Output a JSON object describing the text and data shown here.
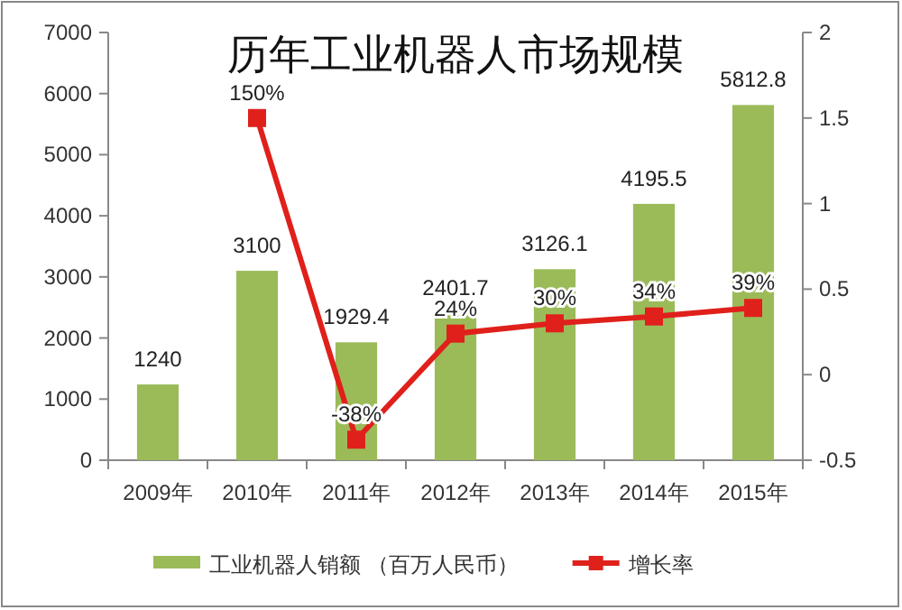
{
  "chart_data": {
    "type": "bar",
    "title": "历年工业机器人市场规模",
    "categories": [
      "2009年",
      "2010年",
      "2011年",
      "2012年",
      "2013年",
      "2014年",
      "2015年"
    ],
    "series": [
      {
        "name": "工业机器人销额 （百万人民币）",
        "color": "#9bbb59",
        "values": [
          1240,
          3100,
          1929.4,
          2401.7,
          3126.1,
          4195.5,
          5812.8
        ],
        "value_labels": [
          "1240",
          "3100",
          "1929.4",
          "2401.7",
          "3126.1",
          "4195.5",
          "5812.8"
        ]
      },
      {
        "name": "增长率",
        "type": "line",
        "axis": "y2",
        "color": "#e0201b",
        "marker": "square",
        "values": [
          null,
          1.5,
          -0.38,
          0.24,
          0.3,
          0.34,
          0.39
        ],
        "value_labels": [
          null,
          "150%",
          "-38%",
          "24%",
          "30%",
          "34%",
          "39%"
        ]
      }
    ],
    "ylim": [
      0,
      7000
    ],
    "yticks": [
      0,
      1000,
      2000,
      3000,
      4000,
      5000,
      6000,
      7000
    ],
    "y2lim": [
      -0.5,
      2
    ],
    "y2ticks": [
      -0.5,
      0,
      0.5,
      1,
      1.5,
      2
    ],
    "legend": "bottom",
    "grid": false
  }
}
